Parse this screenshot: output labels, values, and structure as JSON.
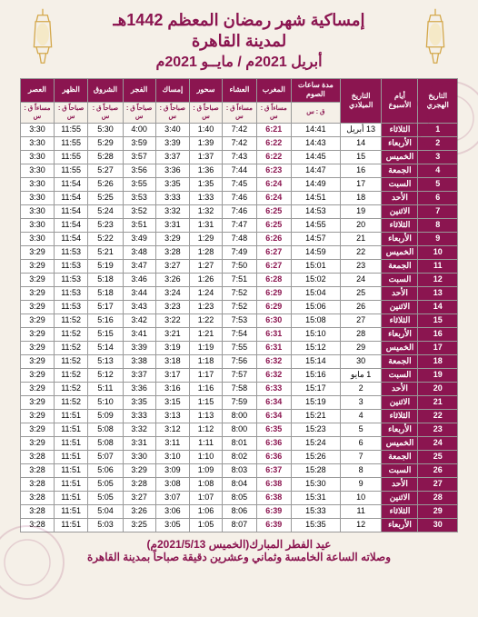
{
  "colors": {
    "primary": "#8b1550",
    "background": "#f5f0e8",
    "border": "#999",
    "cell_bg": "#fff",
    "text": "#000"
  },
  "header": {
    "title1": "إمساكية شهر رمضان المعظم 1442هـ",
    "title2": "لمدينة القاهرة",
    "title3": "أبريل 2021م / مايــو 2021م"
  },
  "columns": [
    {
      "h1": "التاريخ الهجري",
      "h2": ""
    },
    {
      "h1": "أيام الأسبوع",
      "h2": ""
    },
    {
      "h1": "التاريخ الميلادي",
      "h2": ""
    },
    {
      "h1": "مدة ساعات الصوم",
      "h2": "ق : س"
    },
    {
      "h1": "المغرب",
      "h2": "مساءاً ق : س"
    },
    {
      "h1": "العشاء",
      "h2": "مساءاً ق : س"
    },
    {
      "h1": "سحور",
      "h2": "صباحاً ق : س"
    },
    {
      "h1": "إمساك",
      "h2": "صباحاً ق : س"
    },
    {
      "h1": "الفجر",
      "h2": "صباحاً ق : س"
    },
    {
      "h1": "الشروق",
      "h2": "صباحاً ق : س"
    },
    {
      "h1": "الظهر",
      "h2": "صباحاً ق : س"
    },
    {
      "h1": "العصر",
      "h2": "مساءاً ق : س"
    }
  ],
  "rows": [
    {
      "hijri": "1",
      "day": "الثلاثاء",
      "greg": "13 أبريل",
      "dur": "14:41",
      "maghrib": "6:21",
      "isha": "7:42",
      "suhur": "1:40",
      "imsak": "3:40",
      "fajr": "4:00",
      "shuruq": "5:30",
      "dhuhr": "11:55",
      "asr": "3:30"
    },
    {
      "hijri": "2",
      "day": "الأربعاء",
      "greg": "14",
      "dur": "14:43",
      "maghrib": "6:22",
      "isha": "7:42",
      "suhur": "1:39",
      "imsak": "3:39",
      "fajr": "3:59",
      "shuruq": "5:29",
      "dhuhr": "11:55",
      "asr": "3:30"
    },
    {
      "hijri": "3",
      "day": "الخميس",
      "greg": "15",
      "dur": "14:45",
      "maghrib": "6:22",
      "isha": "7:43",
      "suhur": "1:37",
      "imsak": "3:37",
      "fajr": "3:57",
      "shuruq": "5:28",
      "dhuhr": "11:55",
      "asr": "3:30"
    },
    {
      "hijri": "4",
      "day": "الجمعة",
      "greg": "16",
      "dur": "14:47",
      "maghrib": "6:23",
      "isha": "7:44",
      "suhur": "1:36",
      "imsak": "3:36",
      "fajr": "3:56",
      "shuruq": "5:27",
      "dhuhr": "11:55",
      "asr": "3:30"
    },
    {
      "hijri": "5",
      "day": "السبت",
      "greg": "17",
      "dur": "14:49",
      "maghrib": "6:24",
      "isha": "7:45",
      "suhur": "1:35",
      "imsak": "3:35",
      "fajr": "3:55",
      "shuruq": "5:26",
      "dhuhr": "11:54",
      "asr": "3:30"
    },
    {
      "hijri": "6",
      "day": "الأحد",
      "greg": "18",
      "dur": "14:51",
      "maghrib": "6:24",
      "isha": "7:46",
      "suhur": "1:33",
      "imsak": "3:33",
      "fajr": "3:53",
      "shuruq": "5:25",
      "dhuhr": "11:54",
      "asr": "3:30"
    },
    {
      "hijri": "7",
      "day": "الاثنين",
      "greg": "19",
      "dur": "14:53",
      "maghrib": "6:25",
      "isha": "7:46",
      "suhur": "1:32",
      "imsak": "3:32",
      "fajr": "3:52",
      "shuruq": "5:24",
      "dhuhr": "11:54",
      "asr": "3:30"
    },
    {
      "hijri": "8",
      "day": "الثلاثاء",
      "greg": "20",
      "dur": "14:55",
      "maghrib": "6:25",
      "isha": "7:47",
      "suhur": "1:31",
      "imsak": "3:31",
      "fajr": "3:51",
      "shuruq": "5:23",
      "dhuhr": "11:54",
      "asr": "3:30"
    },
    {
      "hijri": "9",
      "day": "الأربعاء",
      "greg": "21",
      "dur": "14:57",
      "maghrib": "6:26",
      "isha": "7:48",
      "suhur": "1:29",
      "imsak": "3:29",
      "fajr": "3:49",
      "shuruq": "5:22",
      "dhuhr": "11:54",
      "asr": "3:30"
    },
    {
      "hijri": "10",
      "day": "الخميس",
      "greg": "22",
      "dur": "14:59",
      "maghrib": "6:27",
      "isha": "7:49",
      "suhur": "1:28",
      "imsak": "3:28",
      "fajr": "3:48",
      "shuruq": "5:21",
      "dhuhr": "11:53",
      "asr": "3:29"
    },
    {
      "hijri": "11",
      "day": "الجمعة",
      "greg": "23",
      "dur": "15:01",
      "maghrib": "6:27",
      "isha": "7:50",
      "suhur": "1:27",
      "imsak": "3:27",
      "fajr": "3:47",
      "shuruq": "5:19",
      "dhuhr": "11:53",
      "asr": "3:29"
    },
    {
      "hijri": "12",
      "day": "السبت",
      "greg": "24",
      "dur": "15:02",
      "maghrib": "6:28",
      "isha": "7:51",
      "suhur": "1:26",
      "imsak": "3:26",
      "fajr": "3:46",
      "shuruq": "5:18",
      "dhuhr": "11:53",
      "asr": "3:29"
    },
    {
      "hijri": "13",
      "day": "الأحد",
      "greg": "25",
      "dur": "15:04",
      "maghrib": "6:29",
      "isha": "7:52",
      "suhur": "1:24",
      "imsak": "3:24",
      "fajr": "3:44",
      "shuruq": "5:18",
      "dhuhr": "11:53",
      "asr": "3:29"
    },
    {
      "hijri": "14",
      "day": "الاثنين",
      "greg": "26",
      "dur": "15:06",
      "maghrib": "6:29",
      "isha": "7:52",
      "suhur": "1:23",
      "imsak": "3:23",
      "fajr": "3:43",
      "shuruq": "5:17",
      "dhuhr": "11:53",
      "asr": "3:29"
    },
    {
      "hijri": "15",
      "day": "الثلاثاء",
      "greg": "27",
      "dur": "15:08",
      "maghrib": "6:30",
      "isha": "7:53",
      "suhur": "1:22",
      "imsak": "3:22",
      "fajr": "3:42",
      "shuruq": "5:16",
      "dhuhr": "11:52",
      "asr": "3:29"
    },
    {
      "hijri": "16",
      "day": "الأربعاء",
      "greg": "28",
      "dur": "15:10",
      "maghrib": "6:31",
      "isha": "7:54",
      "suhur": "1:21",
      "imsak": "3:21",
      "fajr": "3:41",
      "shuruq": "5:15",
      "dhuhr": "11:52",
      "asr": "3:29"
    },
    {
      "hijri": "17",
      "day": "الخميس",
      "greg": "29",
      "dur": "15:12",
      "maghrib": "6:31",
      "isha": "7:55",
      "suhur": "1:19",
      "imsak": "3:19",
      "fajr": "3:39",
      "shuruq": "5:14",
      "dhuhr": "11:52",
      "asr": "3:29"
    },
    {
      "hijri": "18",
      "day": "الجمعة",
      "greg": "30",
      "dur": "15:14",
      "maghrib": "6:32",
      "isha": "7:56",
      "suhur": "1:18",
      "imsak": "3:18",
      "fajr": "3:38",
      "shuruq": "5:13",
      "dhuhr": "11:52",
      "asr": "3:29"
    },
    {
      "hijri": "19",
      "day": "السبت",
      "greg": "1 مايو",
      "dur": "15:16",
      "maghrib": "6:32",
      "isha": "7:57",
      "suhur": "1:17",
      "imsak": "3:17",
      "fajr": "3:37",
      "shuruq": "5:12",
      "dhuhr": "11:52",
      "asr": "3:29"
    },
    {
      "hijri": "20",
      "day": "الأحد",
      "greg": "2",
      "dur": "15:17",
      "maghrib": "6:33",
      "isha": "7:58",
      "suhur": "1:16",
      "imsak": "3:16",
      "fajr": "3:36",
      "shuruq": "5:11",
      "dhuhr": "11:52",
      "asr": "3:29"
    },
    {
      "hijri": "21",
      "day": "الاثنين",
      "greg": "3",
      "dur": "15:19",
      "maghrib": "6:34",
      "isha": "7:59",
      "suhur": "1:15",
      "imsak": "3:15",
      "fajr": "3:35",
      "shuruq": "5:10",
      "dhuhr": "11:52",
      "asr": "3:29"
    },
    {
      "hijri": "22",
      "day": "الثلاثاء",
      "greg": "4",
      "dur": "15:21",
      "maghrib": "6:34",
      "isha": "8:00",
      "suhur": "1:13",
      "imsak": "3:13",
      "fajr": "3:33",
      "shuruq": "5:09",
      "dhuhr": "11:51",
      "asr": "3:29"
    },
    {
      "hijri": "23",
      "day": "الأربعاء",
      "greg": "5",
      "dur": "15:23",
      "maghrib": "6:35",
      "isha": "8:00",
      "suhur": "1:12",
      "imsak": "3:12",
      "fajr": "3:32",
      "shuruq": "5:08",
      "dhuhr": "11:51",
      "asr": "3:29"
    },
    {
      "hijri": "24",
      "day": "الخميس",
      "greg": "6",
      "dur": "15:24",
      "maghrib": "6:36",
      "isha": "8:01",
      "suhur": "1:11",
      "imsak": "3:11",
      "fajr": "3:31",
      "shuruq": "5:08",
      "dhuhr": "11:51",
      "asr": "3:29"
    },
    {
      "hijri": "25",
      "day": "الجمعة",
      "greg": "7",
      "dur": "15:26",
      "maghrib": "6:36",
      "isha": "8:02",
      "suhur": "1:10",
      "imsak": "3:10",
      "fajr": "3:30",
      "shuruq": "5:07",
      "dhuhr": "11:51",
      "asr": "3:28"
    },
    {
      "hijri": "26",
      "day": "السبت",
      "greg": "8",
      "dur": "15:28",
      "maghrib": "6:37",
      "isha": "8:03",
      "suhur": "1:09",
      "imsak": "3:09",
      "fajr": "3:29",
      "shuruq": "5:06",
      "dhuhr": "11:51",
      "asr": "3:28"
    },
    {
      "hijri": "27",
      "day": "الأحد",
      "greg": "9",
      "dur": "15:30",
      "maghrib": "6:38",
      "isha": "8:04",
      "suhur": "1:08",
      "imsak": "3:08",
      "fajr": "3:28",
      "shuruq": "5:05",
      "dhuhr": "11:51",
      "asr": "3:28"
    },
    {
      "hijri": "28",
      "day": "الاثنين",
      "greg": "10",
      "dur": "15:31",
      "maghrib": "6:38",
      "isha": "8:05",
      "suhur": "1:07",
      "imsak": "3:07",
      "fajr": "3:27",
      "shuruq": "5:05",
      "dhuhr": "11:51",
      "asr": "3:28"
    },
    {
      "hijri": "29",
      "day": "الثلاثاء",
      "greg": "11",
      "dur": "15:33",
      "maghrib": "6:39",
      "isha": "8:06",
      "suhur": "1:06",
      "imsak": "3:06",
      "fajr": "3:26",
      "shuruq": "5:04",
      "dhuhr": "11:51",
      "asr": "3:28"
    },
    {
      "hijri": "30",
      "day": "الأربعاء",
      "greg": "12",
      "dur": "15:35",
      "maghrib": "6:39",
      "isha": "8:07",
      "suhur": "1:05",
      "imsak": "3:05",
      "fajr": "3:25",
      "shuruq": "5:03",
      "dhuhr": "11:51",
      "asr": "3:28"
    }
  ],
  "footer": {
    "line1": "عيد الفطر المبارك(الخميس 2021/5/13م)",
    "line2": "وصلاته الساعة الخامسة وثماني وعشرين دقيقة صباحاً بمدينة القاهرة"
  }
}
